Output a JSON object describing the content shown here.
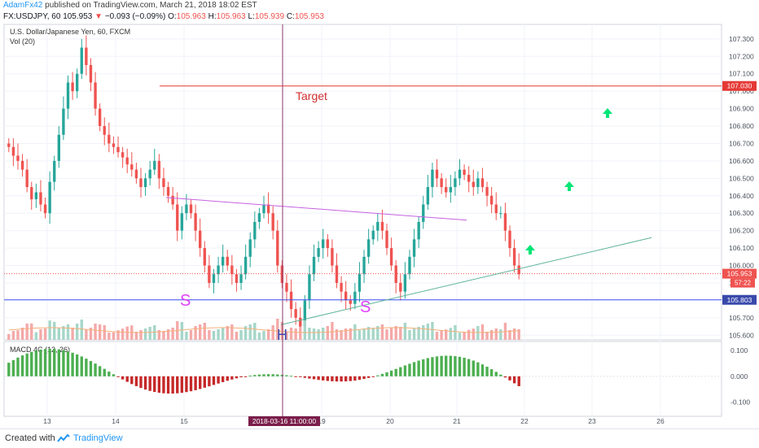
{
  "header": {
    "author": "AdamFx42",
    "published": " published on TradingView.com, March 21, 2018 18:02 EST",
    "symbol": "FX:USDJPY, 60",
    "last": "105.953",
    "change": "−0.093 (−0.09%)",
    "o_label": "O:",
    "o": "105.963",
    "h_label": "H:",
    "h": "105.963",
    "l_label": "L:",
    "l": "105.939",
    "c_label": "C:",
    "c": "105.953"
  },
  "chart_data": {
    "type": "candlestick",
    "title": "U.S. Dollar/Japanese Yen, 60, FXCM",
    "volume_label": "Vol (20)",
    "macd_label": "MACD 4C (12, 26)",
    "price_ticks": [
      "107.300",
      "107.200",
      "107.100",
      "107.000",
      "106.900",
      "106.800",
      "106.700",
      "106.600",
      "106.500",
      "106.400",
      "106.300",
      "106.200",
      "106.100",
      "106.000",
      "105.900",
      "105.800",
      "105.700",
      "105.600"
    ],
    "price_range": [
      105.55,
      107.36
    ],
    "macd_ticks": [
      "0.100",
      "0.000",
      "-0.100"
    ],
    "macd_range": [
      -0.155,
      0.135
    ],
    "x_ticks": [
      "13",
      "14",
      "15",
      "19",
      "20",
      "21",
      "22",
      "23",
      "26"
    ],
    "crosshair_date": "2018-03-16 11:00:00",
    "current_price_label": "105.953",
    "current_time_label": "57:22",
    "target_price_label": "107.030",
    "support_price_label": "105.803",
    "target_price": 107.03,
    "support_price": 105.803,
    "annotations": {
      "target_text": "Target",
      "left_shoulder": "S",
      "head": "H",
      "right_shoulder": "S"
    },
    "close_series": [
      106.68,
      106.63,
      106.6,
      106.55,
      106.45,
      106.38,
      106.42,
      106.35,
      106.3,
      106.48,
      106.6,
      106.75,
      106.9,
      107.05,
      107.0,
      107.1,
      107.25,
      107.15,
      107.05,
      106.9,
      106.8,
      106.75,
      106.7,
      106.68,
      106.65,
      106.62,
      106.58,
      106.55,
      106.5,
      106.45,
      106.5,
      106.55,
      106.6,
      106.5,
      106.45,
      106.4,
      106.35,
      106.2,
      106.3,
      106.35,
      106.3,
      106.2,
      106.1,
      106.0,
      105.9,
      105.95,
      106.0,
      106.05,
      106.0,
      105.95,
      105.9,
      105.95,
      106.05,
      106.15,
      106.25,
      106.3,
      106.35,
      106.3,
      106.2,
      106.0,
      105.9,
      105.85,
      105.75,
      105.7,
      105.65,
      105.8,
      105.95,
      106.05,
      106.1,
      106.15,
      106.1,
      106.0,
      105.9,
      105.85,
      105.8,
      105.78,
      105.85,
      105.95,
      106.05,
      106.15,
      106.2,
      106.25,
      106.2,
      106.1,
      106.0,
      105.9,
      105.85,
      105.95,
      106.05,
      106.15,
      106.25,
      106.35,
      106.45,
      106.55,
      106.5,
      106.45,
      106.42,
      106.45,
      106.5,
      106.55,
      106.52,
      106.48,
      106.45,
      106.5,
      106.45,
      106.4,
      106.35,
      106.3,
      106.3,
      106.2,
      106.1,
      106.0,
      105.95
    ]
  },
  "footer": {
    "created_with": "Created with",
    "brand": "TradingView"
  }
}
